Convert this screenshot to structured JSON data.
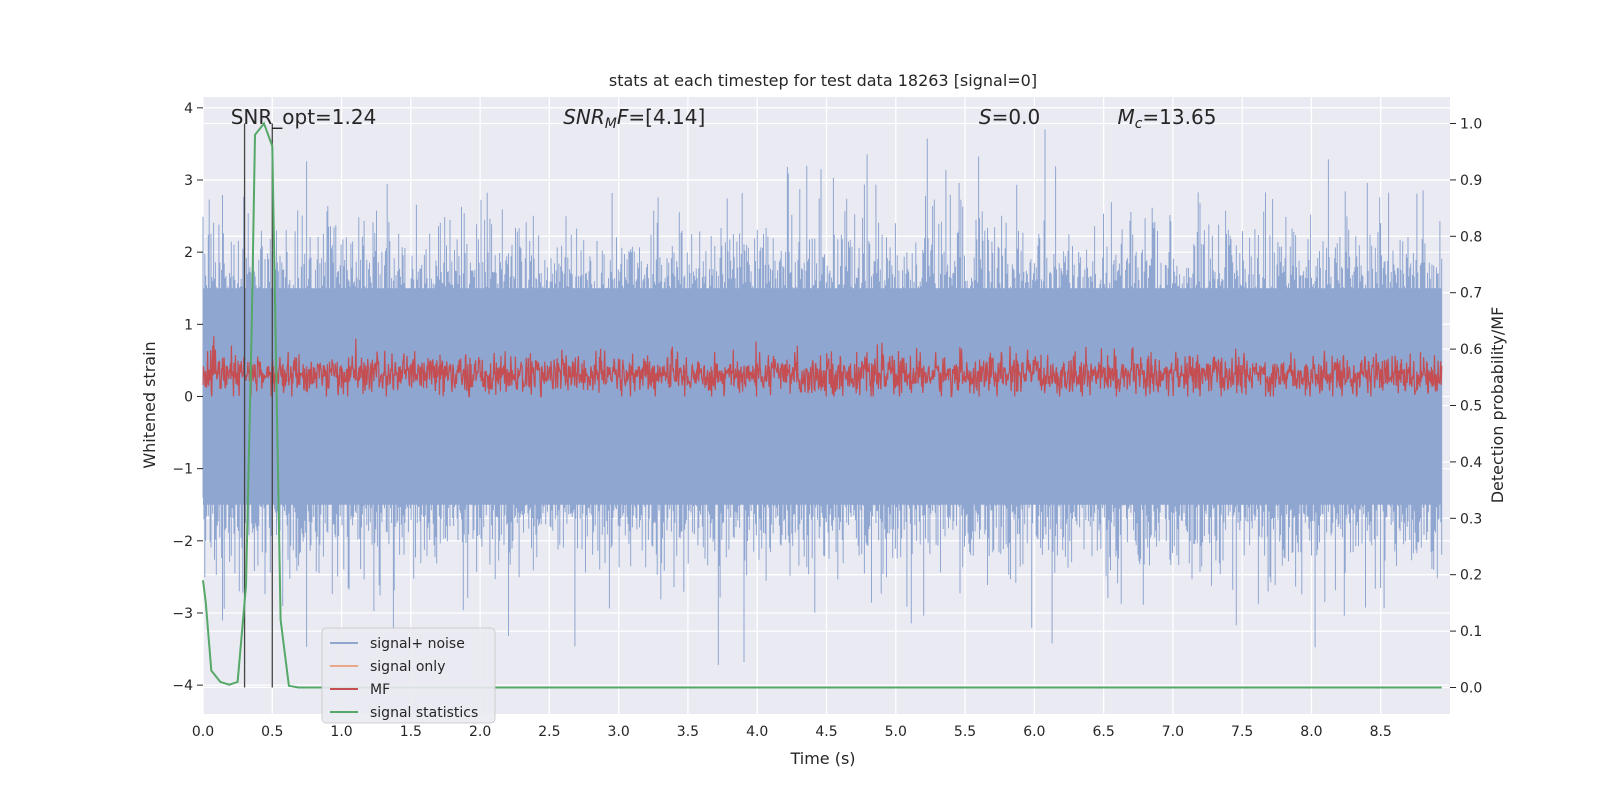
{
  "chart_data": {
    "type": "line",
    "title": "stats at each timestep for test data 18263 [signal=0]",
    "xlabel": "Time (s)",
    "ylabel": "Whitened strain",
    "y2label": "Detection probability/MF",
    "xlim": [
      0.0,
      9.0
    ],
    "ylim": [
      -4.4,
      4.15
    ],
    "y2lim": [
      -0.047,
      1.047
    ],
    "x_ticks": [
      "0.0",
      "0.5",
      "1.0",
      "1.5",
      "2.0",
      "2.5",
      "3.0",
      "3.5",
      "4.0",
      "4.5",
      "5.0",
      "5.5",
      "6.0",
      "6.5",
      "7.0",
      "7.5",
      "8.0",
      "8.5"
    ],
    "y_ticks": [
      "−4",
      "−3",
      "−2",
      "−1",
      "0",
      "1",
      "2",
      "3",
      "4"
    ],
    "y2_ticks": [
      "0.0",
      "0.1",
      "0.2",
      "0.3",
      "0.4",
      "0.5",
      "0.6",
      "0.7",
      "0.8",
      "0.9",
      "1.0"
    ],
    "grid": true,
    "legend_position": "lower-left",
    "annotations": [
      {
        "text": "SNR_opt=1.24",
        "x": 0.2
      },
      {
        "text": "SNRMF=[4.14]",
        "x": 2.6
      },
      {
        "text": "S=0.0",
        "x": 5.6
      },
      {
        "text": "Mc=13.65",
        "x": 6.6
      }
    ],
    "vertical_lines": [
      0.3,
      0.5
    ],
    "series": [
      {
        "name": "signal+ noise",
        "color": "#8fa6d0",
        "axis": "left",
        "description_band": {
          "core_low": -1.5,
          "core_high": 1.5,
          "peak_max": 3.7,
          "peak_min": -4.0
        }
      },
      {
        "name": "signal only",
        "color": "#e9a88a",
        "axis": "left",
        "values": []
      },
      {
        "name": "MF",
        "color": "#c44e52",
        "axis": "left",
        "description_band": {
          "low": 0.0,
          "high": 0.85
        }
      },
      {
        "name": "signal statistics",
        "color": "#55a868",
        "axis": "right",
        "x": [
          0.0,
          0.02,
          0.06,
          0.125,
          0.19,
          0.25,
          0.31,
          0.35,
          0.375,
          0.44,
          0.5,
          0.56,
          0.62,
          0.69,
          1.0,
          2.0,
          3.0,
          4.0,
          5.0,
          6.0,
          7.0,
          8.0,
          8.94
        ],
        "y": [
          0.19,
          0.15,
          0.03,
          0.01,
          0.005,
          0.01,
          0.18,
          0.62,
          0.98,
          1.0,
          0.96,
          0.12,
          0.003,
          0.0,
          0.0,
          0.0,
          0.0,
          0.0,
          0.0,
          0.0,
          0.0,
          0.0,
          0.0
        ]
      }
    ]
  }
}
